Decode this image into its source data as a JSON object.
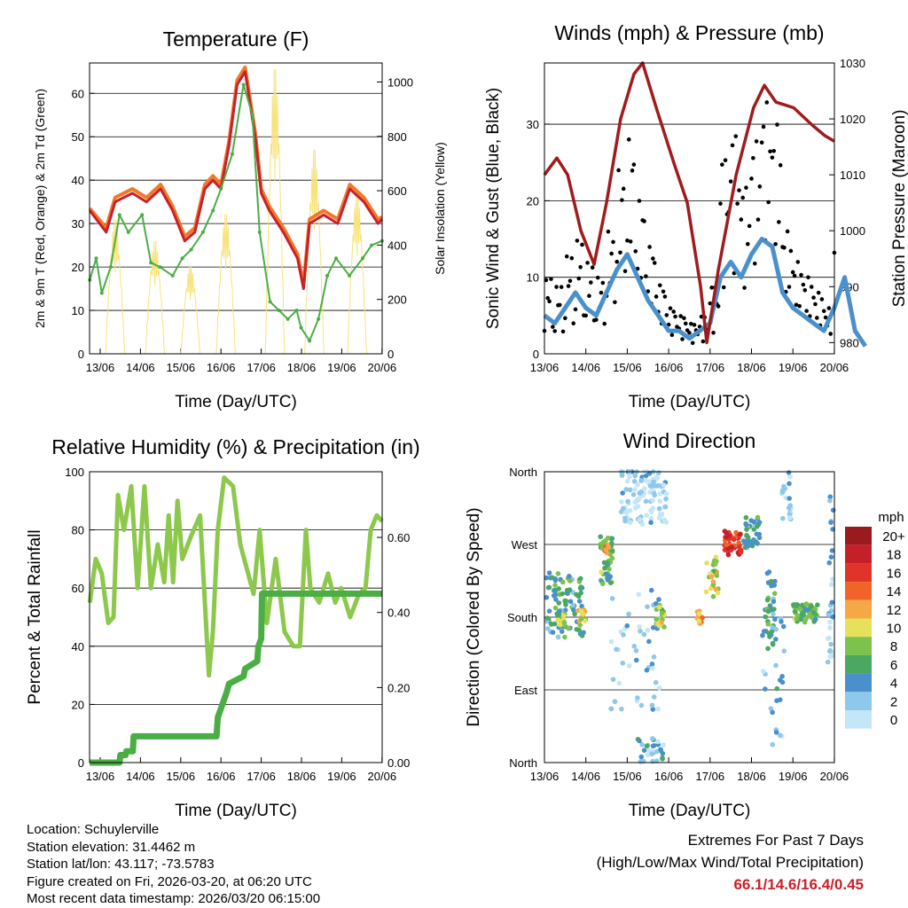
{
  "chart_data": [
    {
      "type": "line",
      "title": "Temperature (F)",
      "xlabel": "Time (Day/UTC)",
      "ylabel": "2m & 9m T (Red, Orange) & 2m Td (Green)",
      "y2label": "Solar Insolation (Yellow)",
      "xticks": [
        "13/06",
        "14/06",
        "15/06",
        "16/06",
        "17/06",
        "18/06",
        "19/06",
        "20/06"
      ],
      "yticks": [
        0,
        10,
        20,
        30,
        40,
        50,
        60
      ],
      "y2ticks": [
        0,
        200,
        400,
        600,
        800,
        1000
      ],
      "ylim": [
        0,
        67
      ],
      "y2lim": [
        0,
        1070
      ],
      "xlim_days": [
        -0.26,
        7
      ],
      "series": [
        {
          "name": "2m T",
          "color": "#c8202a",
          "x": [
            -0.26,
            0.15,
            0.37,
            0.8,
            1.15,
            1.5,
            1.8,
            2.1,
            2.35,
            2.6,
            2.8,
            3.0,
            3.2,
            3.4,
            3.6,
            3.85,
            4.0,
            4.2,
            4.55,
            4.9,
            5.05,
            5.2,
            5.55,
            5.9,
            6.2,
            6.55,
            6.9,
            7.0
          ],
          "y": [
            33,
            28,
            35,
            37,
            35,
            38,
            33,
            26,
            28,
            38,
            40,
            38,
            48,
            62,
            65,
            50,
            37,
            33,
            28,
            22,
            15,
            30,
            32,
            30,
            38,
            35,
            30,
            31
          ]
        },
        {
          "name": "9m T",
          "color": "#f07a2a",
          "x": [
            -0.26,
            0.15,
            0.37,
            0.8,
            1.15,
            1.5,
            1.8,
            2.1,
            2.35,
            2.6,
            2.8,
            3.0,
            3.2,
            3.4,
            3.6,
            3.85,
            4.0,
            4.2,
            4.55,
            4.9,
            5.05,
            5.2,
            5.55,
            5.9,
            6.2,
            6.55,
            6.9,
            7.0
          ],
          "y": [
            33.5,
            29,
            36,
            38,
            36,
            39,
            34,
            27,
            29,
            39,
            41,
            39,
            49,
            63,
            66,
            51,
            38,
            34,
            29,
            23,
            16,
            31,
            33,
            31,
            39,
            36,
            31,
            31.5
          ]
        },
        {
          "name": "2m Td",
          "color": "#4aae44",
          "x": [
            -0.26,
            -0.1,
            0.04,
            0.26,
            0.48,
            0.7,
            1.04,
            1.26,
            1.48,
            1.8,
            2.04,
            2.26,
            2.55,
            2.8,
            3.0,
            3.28,
            3.56,
            3.78,
            3.96,
            4.22,
            4.44,
            4.66,
            4.88,
            4.99,
            5.2,
            5.42,
            5.64,
            5.86,
            6.19,
            6.52,
            6.74,
            7.0
          ],
          "y": [
            17,
            22,
            14,
            20,
            32,
            28,
            32,
            21,
            20,
            18,
            22,
            24,
            28,
            33,
            38,
            46,
            62,
            55,
            28,
            12,
            10,
            8,
            10,
            6,
            3,
            8,
            18,
            22,
            18,
            22,
            25,
            26
          ]
        },
        {
          "name": "Solar",
          "color": "#f8e27a",
          "axis": "right",
          "peak_days": [
            0.37,
            1.36,
            2.24,
            3.12,
            4.34,
            5.32,
            6.38
          ],
          "peaks": [
            500,
            420,
            330,
            520,
            1060,
            760,
            600
          ]
        }
      ]
    },
    {
      "type": "line",
      "title": "Winds (mph) & Pressure (mb)",
      "xlabel": "Time (Day/UTC)",
      "ylabel": "Sonic Wind & Gust (Blue, Black)",
      "y2label": "Station Pressure (Maroon)",
      "xticks": [
        "13/06",
        "14/06",
        "15/06",
        "16/06",
        "17/06",
        "18/06",
        "19/06",
        "20/06"
      ],
      "yticks": [
        0,
        10,
        20,
        30
      ],
      "y2ticks": [
        980,
        990,
        1000,
        1010,
        1020,
        1030
      ],
      "ylim": [
        0,
        38
      ],
      "y2lim": [
        978,
        1030
      ],
      "xlim_days": [
        0,
        7
      ],
      "series": [
        {
          "name": "Pressure",
          "color": "#a01c1c",
          "axis": "right",
          "x": [
            0,
            0.3,
            0.56,
            0.88,
            1.2,
            1.5,
            1.84,
            2.16,
            2.37,
            2.7,
            3.13,
            3.45,
            3.77,
            3.92,
            4.2,
            4.63,
            5.05,
            5.31,
            5.59,
            6.02,
            6.45,
            6.77,
            7.0
          ],
          "y": [
            1010,
            1013,
            1010,
            1000,
            994,
            1005,
            1020,
            1028,
            1030,
            1022,
            1012,
            1005,
            990,
            980,
            993,
            1010,
            1022,
            1026,
            1023,
            1022,
            1019,
            1017,
            1016
          ]
        },
        {
          "name": "Gust",
          "color": "#000000",
          "x_step_days": 0.25,
          "y": [
            10,
            9,
            13,
            15,
            12,
            10,
            16,
            24,
            28,
            20,
            14,
            9,
            6,
            5,
            4,
            5,
            9,
            26,
            29,
            22,
            28,
            33,
            30,
            16,
            12,
            10,
            8,
            6,
            14,
            22,
            6,
            3
          ]
        },
        {
          "name": "Sonic Wind",
          "color": "#4a90cc",
          "x_step_days": 0.25,
          "y": [
            5,
            4,
            6,
            8,
            6,
            5,
            8,
            11,
            13,
            10,
            7,
            5,
            3,
            3,
            2,
            3,
            4,
            10,
            12,
            10,
            13,
            15,
            14,
            8,
            6,
            5,
            4,
            3,
            6,
            10,
            3,
            1
          ]
        }
      ]
    },
    {
      "type": "line",
      "title": "Relative Humidity (%) & Precipitation (in)",
      "xlabel": "Time (Day/UTC)",
      "ylabel": "Percent & Total Rainfall",
      "xticks": [
        "13/06",
        "14/06",
        "15/06",
        "16/06",
        "17/06",
        "18/06",
        "19/06",
        "20/06"
      ],
      "yticks": [
        0,
        20,
        40,
        60,
        80,
        100
      ],
      "y2ticks": [
        "0.00",
        "0.20",
        "0.40",
        "0.60"
      ],
      "ylim": [
        0,
        100
      ],
      "y2lim": [
        0,
        0.775
      ],
      "xlim_days": [
        -0.26,
        7
      ],
      "series": [
        {
          "name": "RH",
          "color": "#8cc84c",
          "x": [
            -0.26,
            -0.11,
            0.04,
            0.2,
            0.33,
            0.44,
            0.59,
            0.77,
            0.93,
            1.1,
            1.26,
            1.43,
            1.59,
            1.7,
            1.81,
            1.92,
            2.04,
            2.26,
            2.48,
            2.7,
            2.8,
            2.92,
            3.08,
            3.3,
            3.48,
            3.81,
            3.96,
            4.14,
            4.36,
            4.58,
            4.8,
            4.96,
            5.11,
            5.22,
            5.44,
            5.66,
            5.84,
            5.99,
            6.21,
            6.43,
            6.59,
            6.72,
            6.87,
            7.0
          ],
          "y": [
            55,
            70,
            65,
            48,
            50,
            92,
            80,
            95,
            60,
            95,
            60,
            75,
            62,
            85,
            62,
            90,
            70,
            78,
            85,
            30,
            45,
            80,
            98,
            95,
            75,
            58,
            80,
            48,
            70,
            45,
            40,
            40,
            80,
            60,
            55,
            65,
            55,
            60,
            50,
            58,
            60,
            80,
            85,
            83
          ]
        },
        {
          "name": "Precipitation",
          "color": "#4aae44",
          "axis": "right",
          "x": [
            -0.26,
            0.48,
            0.5,
            0.63,
            0.65,
            0.81,
            0.83,
            2.89,
            2.92,
            3.15,
            3.2,
            3.56,
            3.6,
            3.9,
            3.93,
            4.0,
            4.02,
            7.0
          ],
          "y": [
            0,
            0,
            0.02,
            0.02,
            0.03,
            0.03,
            0.07,
            0.07,
            0.12,
            0.19,
            0.21,
            0.23,
            0.25,
            0.27,
            0.31,
            0.33,
            0.45,
            0.45
          ]
        }
      ]
    },
    {
      "type": "scatter",
      "title": "Wind Direction",
      "xlabel": "Time (Day/UTC)",
      "ylabel": "Direction (Colored By Speed)",
      "xticks": [
        "13/06",
        "14/06",
        "15/06",
        "16/06",
        "17/06",
        "18/06",
        "19/06",
        "20/06"
      ],
      "yticks": [
        "North",
        "East",
        "South",
        "West",
        "North"
      ],
      "ylim_deg": [
        0,
        360
      ],
      "legend": {
        "title": "mph",
        "labels": [
          "20+",
          "18",
          "16",
          "14",
          "12",
          "10",
          "8",
          "6",
          "4",
          "2",
          "0"
        ],
        "colors": [
          "#9a1a1e",
          "#c4202a",
          "#e0342a",
          "#f0642a",
          "#f5a845",
          "#e8e05a",
          "#7cc24f",
          "#4aa860",
          "#4a90cc",
          "#8ec8ea",
          "#c4e6f8"
        ]
      },
      "clusters": [
        {
          "day": 0.5,
          "spread_days": 0.45,
          "dir": 195,
          "spread_deg": 40,
          "speed": 5,
          "n": 90
        },
        {
          "day": 0.9,
          "spread_days": 0.1,
          "dir": 180,
          "spread_deg": 10,
          "speed": 10,
          "n": 12
        },
        {
          "day": 0.4,
          "spread_days": 0.1,
          "dir": 180,
          "spread_deg": 10,
          "speed": 9,
          "n": 10
        },
        {
          "day": 1.5,
          "spread_days": 0.15,
          "dir": 250,
          "spread_deg": 30,
          "speed": 7,
          "n": 50
        },
        {
          "day": 1.5,
          "spread_days": 0.06,
          "dir": 265,
          "spread_deg": 8,
          "speed": 13,
          "n": 10
        },
        {
          "day": 2.4,
          "spread_days": 0.55,
          "dir": 330,
          "spread_deg": 35,
          "speed": 1,
          "n": 110
        },
        {
          "day": 2.2,
          "spread_days": 0.6,
          "dir": 140,
          "spread_deg": 80,
          "speed": 2,
          "n": 50
        },
        {
          "day": 2.8,
          "spread_days": 0.1,
          "dir": 180,
          "spread_deg": 15,
          "speed": 9,
          "n": 18
        },
        {
          "day": 2.6,
          "spread_days": 0.35,
          "dir": 15,
          "spread_deg": 15,
          "speed": 3,
          "n": 30
        },
        {
          "day": 3.75,
          "spread_days": 0.08,
          "dir": 180,
          "spread_deg": 8,
          "speed": 12,
          "n": 12
        },
        {
          "day": 4.05,
          "spread_days": 0.15,
          "dir": 230,
          "spread_deg": 25,
          "speed": 9,
          "n": 25
        },
        {
          "day": 4.55,
          "spread_days": 0.2,
          "dir": 272,
          "spread_deg": 15,
          "speed": 16,
          "n": 45
        },
        {
          "day": 5.0,
          "spread_days": 0.2,
          "dir": 285,
          "spread_deg": 20,
          "speed": 5,
          "n": 40
        },
        {
          "day": 5.45,
          "spread_days": 0.12,
          "dir": 190,
          "spread_deg": 50,
          "speed": 5,
          "n": 35
        },
        {
          "day": 5.5,
          "spread_days": 0.3,
          "dir": 100,
          "spread_deg": 90,
          "speed": 3,
          "n": 25
        },
        {
          "day": 5.85,
          "spread_days": 0.12,
          "dir": 330,
          "spread_deg": 30,
          "speed": 1,
          "n": 20
        },
        {
          "day": 6.3,
          "spread_days": 0.3,
          "dir": 185,
          "spread_deg": 12,
          "speed": 7,
          "n": 60
        },
        {
          "day": 6.9,
          "spread_days": 0.08,
          "dir": 230,
          "spread_deg": 110,
          "speed": 2,
          "n": 30
        }
      ]
    }
  ],
  "footer": {
    "location": "Location: Schuylerville",
    "elevation": "Station elevation: 31.4462 m",
    "latlon": "Station lat/lon: 43.117; -73.5783",
    "created": "Figure created on Fri, 2026-03-20, at 06:20 UTC",
    "recent": "Most recent data timestamp: 2026/03/20 06:15:00"
  },
  "extremes": {
    "title": "Extremes For Past 7 Days",
    "subtitle": "(High/Low/Max Wind/Total Precipitation)",
    "values": "66.1/14.6/16.4/0.45"
  }
}
